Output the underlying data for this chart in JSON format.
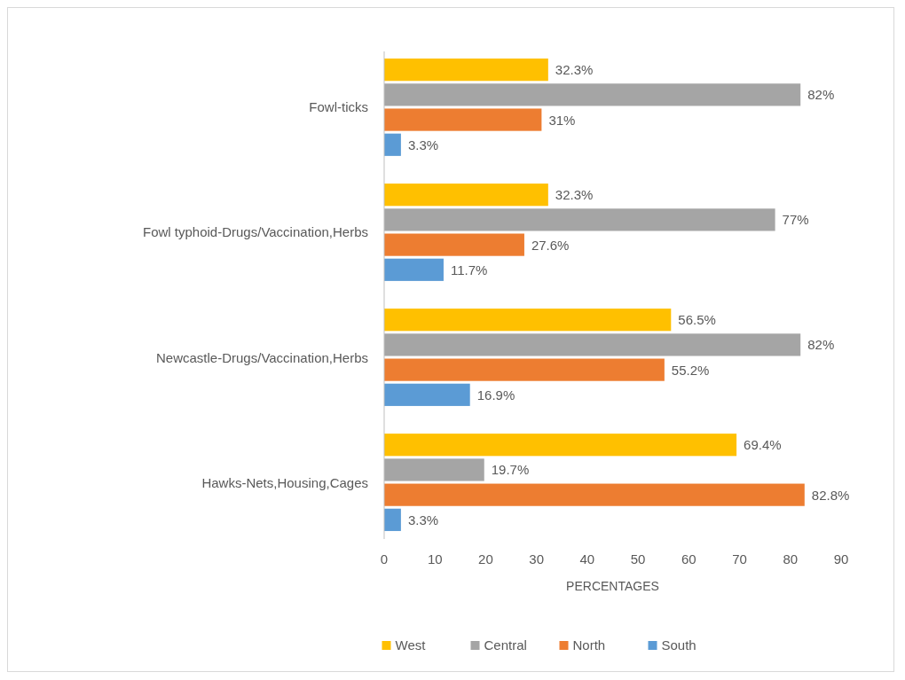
{
  "chart_data": {
    "type": "bar",
    "orientation": "horizontal",
    "xlabel": "PERCENTAGES",
    "categories": [
      "Fowl-ticks",
      "Fowl typhoid-Drugs/Vaccination,Herbs",
      "Newcastle-Drugs/Vaccination,Herbs",
      "Hawks-Nets,Housing,Cages"
    ],
    "series": [
      {
        "name": "West",
        "color": "#ffc000",
        "values": [
          32.3,
          32.3,
          56.5,
          69.4
        ],
        "value_labels": [
          "32.3%",
          "32.3%",
          "56.5%",
          "69.4%"
        ]
      },
      {
        "name": "Central",
        "color": "#a5a5a5",
        "values": [
          82,
          77,
          82,
          19.7
        ],
        "value_labels": [
          "82%",
          "77%",
          "82%",
          "19.7%"
        ]
      },
      {
        "name": "North",
        "color": "#ed7d31",
        "values": [
          31,
          27.6,
          55.2,
          82.8
        ],
        "value_labels": [
          "31%",
          "27.6%",
          "55.2%",
          "82.8%"
        ]
      },
      {
        "name": "South",
        "color": "#5b9bd5",
        "values": [
          3.3,
          11.7,
          16.9,
          3.3
        ],
        "value_labels": [
          "3.3%",
          "11.7%",
          "16.9%",
          "3.3%"
        ]
      }
    ],
    "xlim": [
      0,
      90
    ],
    "xticks": [
      0,
      10,
      20,
      30,
      40,
      50,
      60,
      70,
      80,
      90
    ],
    "legend": "bottom"
  }
}
